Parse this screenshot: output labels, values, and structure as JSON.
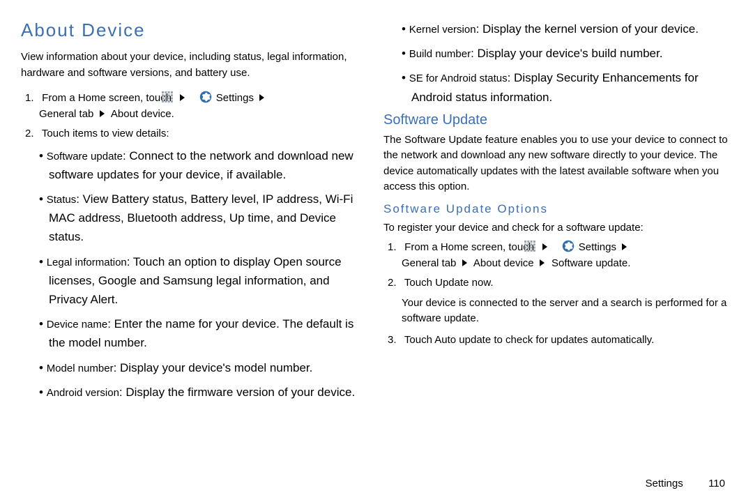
{
  "left": {
    "h1": "About Device",
    "intro": "View information about your device, including status, legal information, hardware and software versions, and battery use.",
    "step1_pre": "From a Home screen, touch",
    "step1_settings": "Settings",
    "step1_b_general": "General",
    "step1_b_tab": "tab",
    "step1_b_about": "About device",
    "step2": "Touch items to view details:",
    "bullets": [
      {
        "term": "Software update",
        "desc": ": Connect to the network and download new software updates for your device, if available."
      },
      {
        "term": "Status",
        "desc": ": View Battery status, Battery level, IP address, Wi-Fi MAC address, Bluetooth address, Up time, and Device status."
      },
      {
        "term": "Legal information",
        "desc": ": Touch an option to display Open source licenses, Google and Samsung legal information, and Privacy Alert."
      },
      {
        "term": "Device name",
        "desc": ": Enter the name for your device. The default is the model number."
      },
      {
        "term": "Model number",
        "desc": ": Display your device's model number."
      },
      {
        "term": "Android version",
        "desc": ": Display the firmware version of your device."
      }
    ]
  },
  "right": {
    "bullets_top": [
      {
        "term": "Kernel version",
        "desc": ": Display the kernel version of your device."
      },
      {
        "term": "Build number",
        "desc": ": Display your device's build number."
      },
      {
        "term": "SE for Android status",
        "desc": ": Display Security Enhancements for Android status information."
      }
    ],
    "h2": "Software Update",
    "para": "The Software Update feature enables you to use your device to connect to the network and download any new software directly to your device. The device automatically updates with the latest available software when you access this option.",
    "h3": "Software Update Options",
    "reg": "To register your device and check for a software update:",
    "s1_pre": "From a Home screen, touch",
    "s1_settings": "Settings",
    "s1_general": "General",
    "s1_tab": "tab",
    "s1_about": "About device",
    "s1_soft": "Software update",
    "s2_a": "Touch ",
    "s2_b": "Update now",
    "s2_note": "Your device is connected to the server and a search is performed for a software update.",
    "s3_a": "Touch ",
    "s3_b": "Auto update",
    "s3_c": " to check for updates automatically."
  },
  "footer": {
    "section": "Settings",
    "page": "110"
  }
}
